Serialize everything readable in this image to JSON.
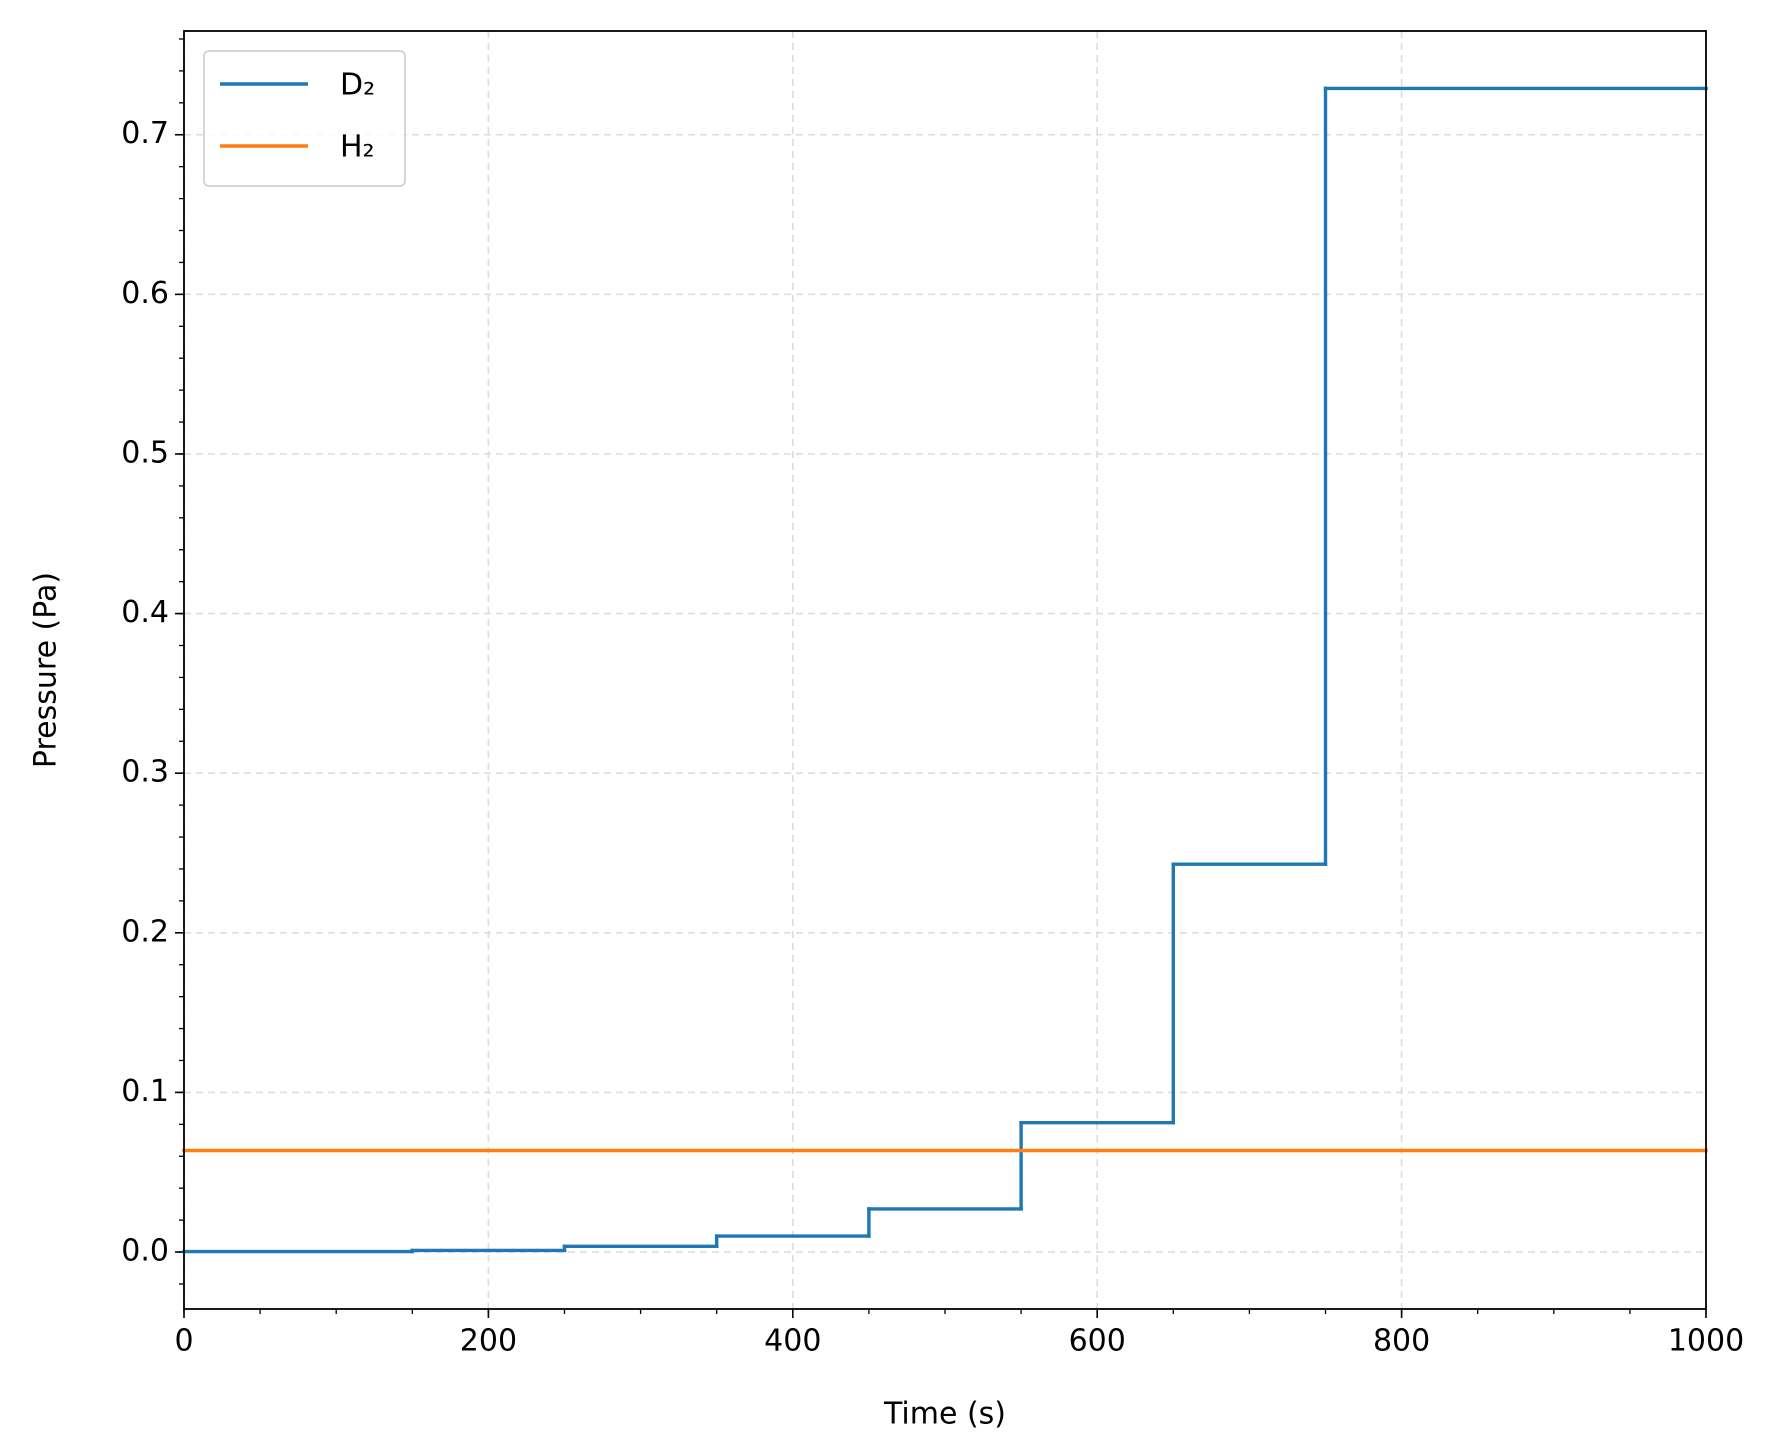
{
  "chart_data": {
    "type": "step",
    "xlabel": "Time (s)",
    "ylabel": "Pressure (Pa)",
    "xlim": [
      0,
      1000
    ],
    "ylim": [
      -0.0357,
      0.765
    ],
    "xticks": [
      0,
      200,
      400,
      600,
      800,
      1000
    ],
    "yticks": [
      {
        "value": 0,
        "label": "0.0"
      },
      0.1,
      0.2,
      0.3,
      0.4,
      0.5,
      0.6,
      0.7
    ],
    "xminor_step": 50,
    "yminor_step": 0.02,
    "grid": true,
    "legend": "upper left",
    "series": [
      {
        "name": "D₂",
        "color": "#1f77b4",
        "x": [
          0,
          150,
          250,
          350,
          450,
          550,
          650,
          750
        ],
        "values": [
          0.0003,
          0.001,
          0.0036,
          0.01,
          0.027,
          0.081,
          0.243,
          0.729
        ]
      },
      {
        "name": "H₂",
        "color": "#ff7f0e",
        "x": [
          0
        ],
        "values": [
          0.0636
        ]
      }
    ]
  }
}
